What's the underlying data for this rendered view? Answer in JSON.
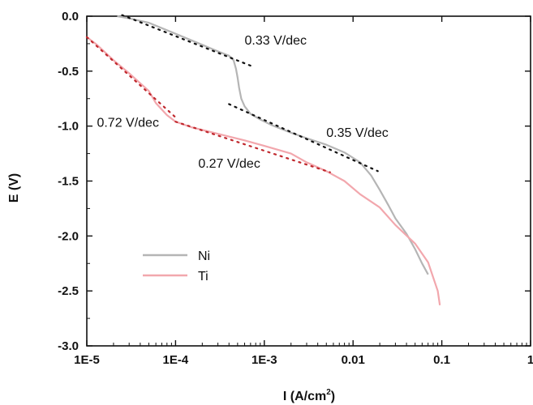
{
  "chart_data": {
    "type": "line",
    "title": "",
    "xlabel": "I (A/cm",
    "xlabel_sup": "2",
    "xlabel_end": ")",
    "ylabel": "E (V)",
    "xscale": "log",
    "xlim": [
      1e-05,
      1
    ],
    "ylim": [
      -3.0,
      0.0
    ],
    "grid": false,
    "legend_position": "lower-left",
    "x_ticks": [
      1e-05,
      0.0001,
      0.001,
      0.01,
      0.1,
      1
    ],
    "x_tick_labels": [
      "1E-5",
      "1E-4",
      "1E-3",
      "0.01",
      "0.1",
      "1"
    ],
    "y_ticks": [
      0.0,
      -0.5,
      -1.0,
      -1.5,
      -2.0,
      -2.5,
      -3.0
    ],
    "y_tick_labels": [
      "0.0",
      "-0.5",
      "-1.0",
      "-1.5",
      "-2.0",
      "-2.5",
      "-3.0"
    ],
    "series": [
      {
        "name": "Ni",
        "color": "#b5b5b5",
        "x": [
          2.2e-05,
          3e-05,
          5e-05,
          0.0001,
          0.0002,
          0.0003,
          0.0004,
          0.00045,
          0.00048,
          0.0005,
          0.00052,
          0.00055,
          0.0006,
          0.0007,
          0.0009,
          0.0012,
          0.002,
          0.003,
          0.005,
          0.008,
          0.012,
          0.016,
          0.02,
          0.025,
          0.03,
          0.04,
          0.05,
          0.06,
          0.07
        ],
        "y": [
          0.0,
          -0.02,
          -0.06,
          -0.16,
          -0.26,
          -0.32,
          -0.36,
          -0.4,
          -0.48,
          -0.56,
          -0.65,
          -0.75,
          -0.82,
          -0.89,
          -0.94,
          -0.99,
          -1.06,
          -1.11,
          -1.17,
          -1.24,
          -1.33,
          -1.45,
          -1.58,
          -1.72,
          -1.84,
          -1.98,
          -2.12,
          -2.25,
          -2.35
        ]
      },
      {
        "name": "Ti",
        "color": "#f2a7ad",
        "x": [
          1e-05,
          1.3e-05,
          2e-05,
          3e-05,
          4e-05,
          5e-05,
          6e-05,
          8e-05,
          0.0001,
          0.00015,
          0.0003,
          0.0006,
          0.001,
          0.002,
          0.003,
          0.005,
          0.008,
          0.012,
          0.02,
          0.03,
          0.05,
          0.07,
          0.09,
          0.095
        ],
        "y": [
          -0.19,
          -0.26,
          -0.4,
          -0.52,
          -0.61,
          -0.68,
          -0.79,
          -0.9,
          -0.96,
          -1.01,
          -1.07,
          -1.13,
          -1.18,
          -1.25,
          -1.33,
          -1.41,
          -1.5,
          -1.62,
          -1.74,
          -1.9,
          -2.07,
          -2.24,
          -2.5,
          -2.63
        ]
      }
    ],
    "tafel_fits": [
      {
        "x": [
          2.5e-05,
          0.0007
        ],
        "y": [
          0.01,
          -0.45
        ]
      },
      {
        "x": [
          0.0004,
          0.019
        ],
        "y": [
          -0.8,
          -1.41
        ]
      },
      {
        "x": [
          1e-05,
          0.0001
        ],
        "y": [
          -0.19,
          -0.92
        ]
      },
      {
        "x": [
          0.0001,
          0.0055
        ],
        "y": [
          -0.96,
          -1.42
        ]
      }
    ],
    "annotations": [
      {
        "text": "0.33 V/dec",
        "x": 0.0006,
        "y": -0.22
      },
      {
        "text": "0.35 V/dec",
        "x": 0.005,
        "y": -1.06
      },
      {
        "text": "0.72 V/dec",
        "x": 1.3e-05,
        "y": -0.97
      },
      {
        "text": "0.27 V/dec",
        "x": 0.00018,
        "y": -1.34
      }
    ]
  }
}
